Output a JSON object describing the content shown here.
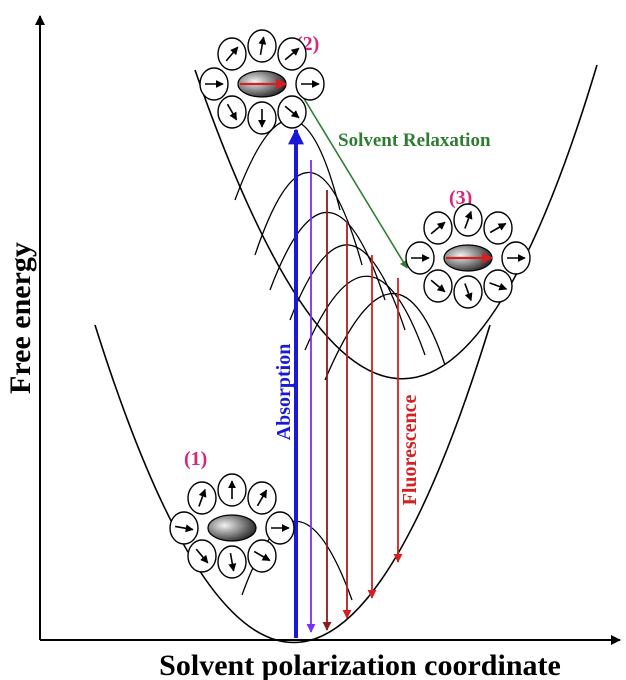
{
  "axes": {
    "x_label": "Solvent polarization coordinate",
    "y_label": "Free energy"
  },
  "stages": {
    "s1": "(1)",
    "s2": "(2)",
    "s3": "(3)"
  },
  "labels": {
    "solvent_relaxation": "Solvent Relaxation",
    "absorption": "Absorption",
    "fluorescence": "Fluorescence"
  },
  "colors": {
    "stage": "#d6267a",
    "relaxation": "#2e7d32",
    "absorption": "#1a1ad6",
    "fluorescence": "#d32020",
    "fluorescence_dark": "#8b1a1a",
    "violet": "#7b2ff7"
  }
}
